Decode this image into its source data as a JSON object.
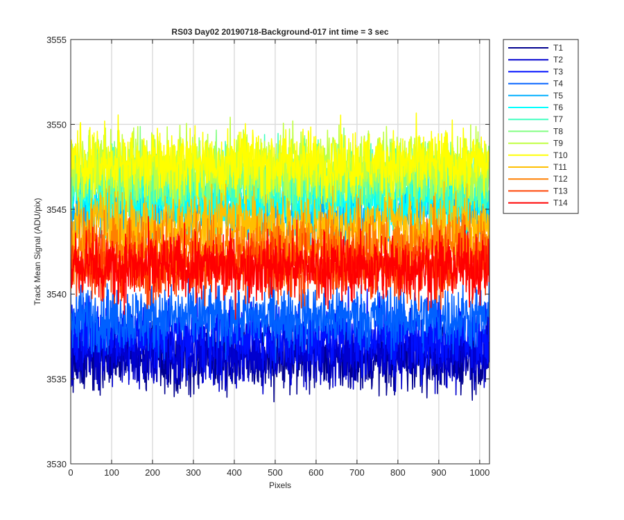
{
  "chart_data": {
    "type": "line",
    "title": "RS03 Day02 20190718-Background-017 int time = 3 sec",
    "xlabel": "Pixels",
    "ylabel": "Track Mean Signal (ADU/pix)",
    "xlim": [
      0,
      1024
    ],
    "ylim": [
      3530,
      3555
    ],
    "xticks": [
      0,
      100,
      200,
      300,
      400,
      500,
      600,
      700,
      800,
      900,
      1000
    ],
    "yticks": [
      3530,
      3535,
      3540,
      3545,
      3550,
      3555
    ],
    "grid": "vertical gridlines on",
    "legend_location": "outside top-right",
    "x_points_per_series": 1024,
    "series_note": "noisy tracks; mean values and approximate noise amplitude per track",
    "series": [
      {
        "name": "T1",
        "mean": 3536.2,
        "noise": 1.4,
        "color": "#00008f"
      },
      {
        "name": "T2",
        "mean": 3536.6,
        "noise": 1.4,
        "color": "#0000cf"
      },
      {
        "name": "T3",
        "mean": 3537.6,
        "noise": 1.4,
        "color": "#0010ff"
      },
      {
        "name": "T4",
        "mean": 3538.6,
        "noise": 1.4,
        "color": "#0060ff"
      },
      {
        "name": "T5",
        "mean": 3545.0,
        "noise": 1.4,
        "color": "#00afff"
      },
      {
        "name": "T6",
        "mean": 3545.6,
        "noise": 1.4,
        "color": "#00ffff"
      },
      {
        "name": "T7",
        "mean": 3546.5,
        "noise": 1.4,
        "color": "#40ffbf"
      },
      {
        "name": "T8",
        "mean": 3547.0,
        "noise": 1.4,
        "color": "#80ff80"
      },
      {
        "name": "T9",
        "mean": 3547.6,
        "noise": 1.4,
        "color": "#bfff40"
      },
      {
        "name": "T10",
        "mean": 3547.7,
        "noise": 1.4,
        "color": "#ffff00"
      },
      {
        "name": "T11",
        "mean": 3544.0,
        "noise": 1.4,
        "color": "#ffbf00"
      },
      {
        "name": "T12",
        "mean": 3542.8,
        "noise": 1.4,
        "color": "#ff7f00"
      },
      {
        "name": "T13",
        "mean": 3541.6,
        "noise": 1.4,
        "color": "#ff4000"
      },
      {
        "name": "T14",
        "mean": 3541.6,
        "noise": 1.4,
        "color": "#ff0000"
      }
    ]
  }
}
